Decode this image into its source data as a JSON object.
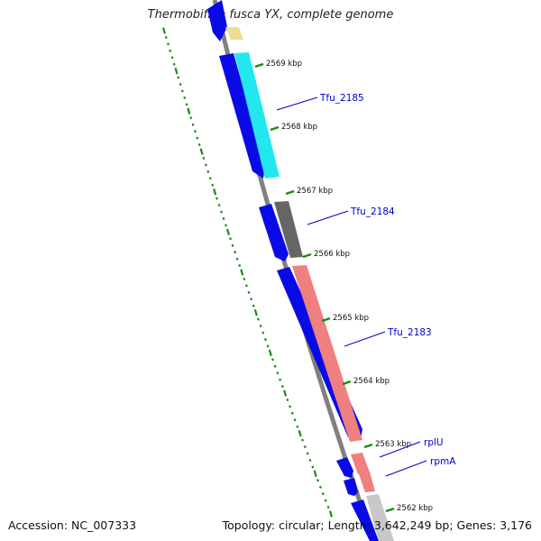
{
  "title": "Thermobifida fusca YX, complete genome",
  "accession_label": "Accession: NC_007333",
  "summary_label": "Topology: circular; Length: 3,642,249 bp; Genes: 3,176",
  "kbp_ticks": [
    "2569 kbp",
    "2568 kbp",
    "2567 kbp",
    "2566 kbp",
    "2565 kbp",
    "2564 kbp",
    "2563 kbp",
    "2562 kbp"
  ],
  "gene_labels": [
    "Tfu_2185",
    "Tfu_2184",
    "Tfu_2183",
    "rplU",
    "rpmA"
  ],
  "colors": {
    "cds": "#0a0ae6",
    "cyan": "#22e8ee",
    "gray": "#666666",
    "salmon": "#ef8080",
    "light_gray": "#c8c8c8",
    "yellow": "#eedd99",
    "backbone": "#808080",
    "tick_green": "#1a8a1a",
    "label_blue": "#0000cc"
  }
}
